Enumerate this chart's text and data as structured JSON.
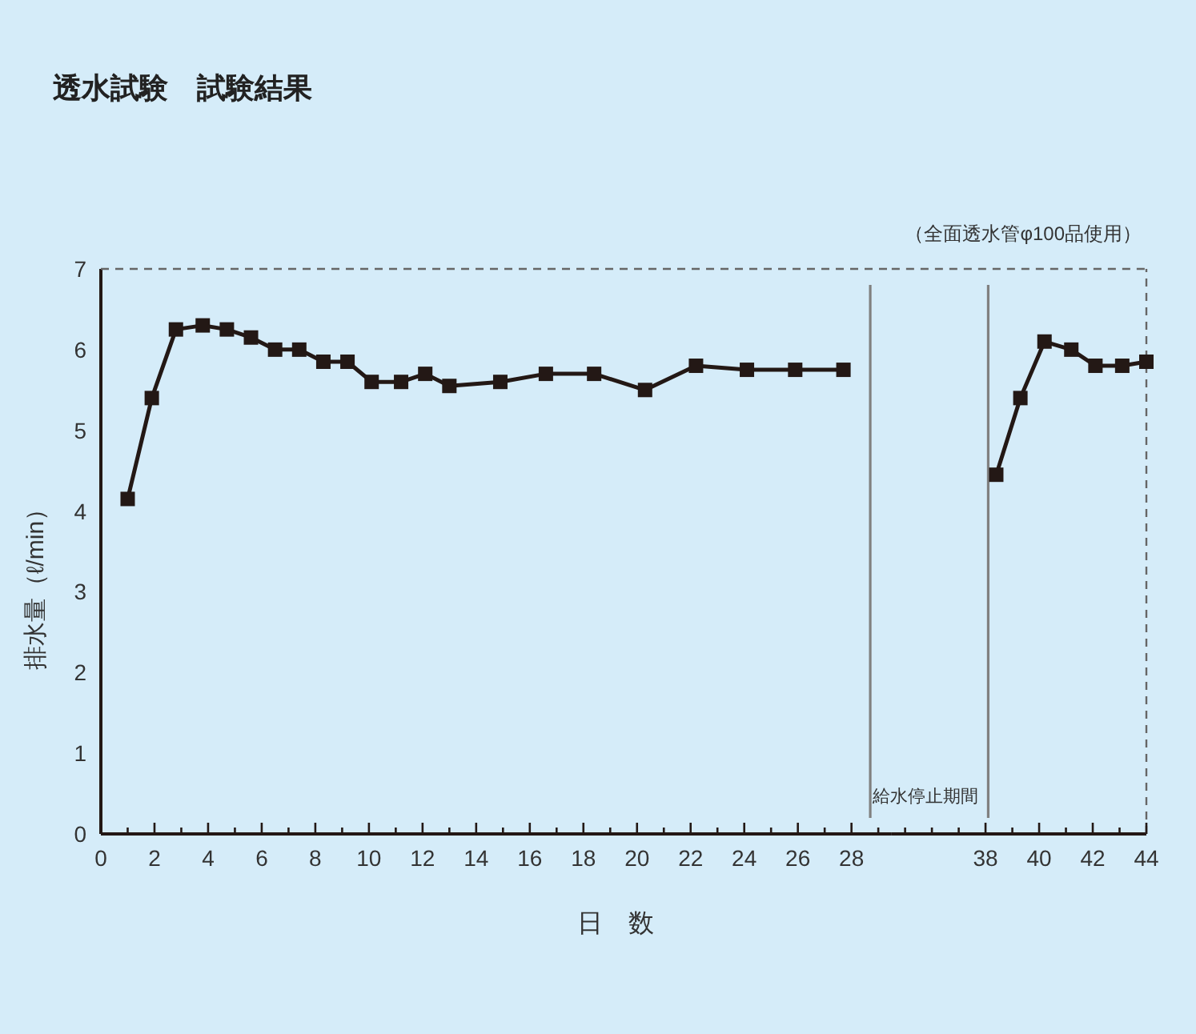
{
  "chart_data": [
    {
      "type": "line",
      "title": "透水試験　試験結果",
      "xlabel": "日　数",
      "ylabel": "排水量（ℓ/min）",
      "xlim": [
        0,
        29.5
      ],
      "ylim": [
        0,
        7
      ],
      "yticks": [
        0,
        1,
        2,
        3,
        4,
        5,
        6,
        7
      ],
      "xticks": [
        0,
        {
          "value": 1,
          "label": null
        },
        2,
        {
          "value": 3,
          "label": null
        },
        4,
        {
          "value": 5,
          "label": null
        },
        6,
        {
          "value": 7,
          "label": null
        },
        8,
        {
          "value": 9,
          "label": null
        },
        10,
        {
          "value": 11,
          "label": null
        },
        12,
        {
          "value": 13,
          "label": null
        },
        14,
        {
          "value": 15,
          "label": null
        },
        16,
        {
          "value": 17,
          "label": null
        },
        18,
        {
          "value": 19,
          "label": null
        },
        20,
        {
          "value": 21,
          "label": null
        },
        22,
        {
          "value": 23,
          "label": null
        },
        24,
        {
          "value": 25,
          "label": null
        },
        26,
        {
          "value": 27,
          "label": null
        },
        28,
        {
          "value": 29,
          "label": null
        }
      ],
      "marker": "square",
      "line_style": "solid",
      "ref_lines": [
        {
          "axis": "x",
          "value": 28.7,
          "color": "#808080"
        }
      ],
      "series": [
        {
          "color": "#231815",
          "x": [
            1,
            1.9,
            2.8,
            3.8,
            4.7,
            5.6,
            6.5,
            7.4,
            8.3,
            9.2,
            10.1,
            11.2,
            12.1,
            13.0,
            14.9,
            16.6,
            18.4,
            20.3,
            22.2,
            24.1,
            25.9,
            27.7
          ],
          "values": [
            4.15,
            5.4,
            6.25,
            6.3,
            6.25,
            6.15,
            6.0,
            6.0,
            5.85,
            5.85,
            5.6,
            5.6,
            5.7,
            5.55,
            5.6,
            5.7,
            5.7,
            5.5,
            5.8,
            5.75,
            5.75,
            5.75
          ]
        }
      ]
    },
    {
      "type": "line",
      "annotations": [
        "（全面透水管φ100品使用）"
      ],
      "xlim": [
        34.5,
        44
      ],
      "ylim": [
        0,
        7
      ],
      "tick_labels": "x",
      "xticks": [
        {
          "value": 35,
          "label": null
        },
        {
          "value": 36,
          "label": null
        },
        {
          "value": 37,
          "label": null
        },
        38,
        {
          "value": 39,
          "label": null
        },
        40,
        {
          "value": 41,
          "label": null
        },
        42,
        {
          "value": 43,
          "label": null
        },
        44
      ],
      "marker": "square",
      "line_style": "solid",
      "ref_lines": [
        {
          "axis": "x",
          "value": 38.1,
          "label": "給水停止期間",
          "color": "#808080"
        }
      ],
      "series": [
        {
          "color": "#231815",
          "x": [
            38.4,
            39.3,
            40.2,
            41.2,
            42.1,
            43.1,
            44.0
          ],
          "values": [
            4.45,
            5.4,
            6.1,
            6.0,
            5.8,
            5.8,
            5.85
          ]
        }
      ]
    }
  ]
}
